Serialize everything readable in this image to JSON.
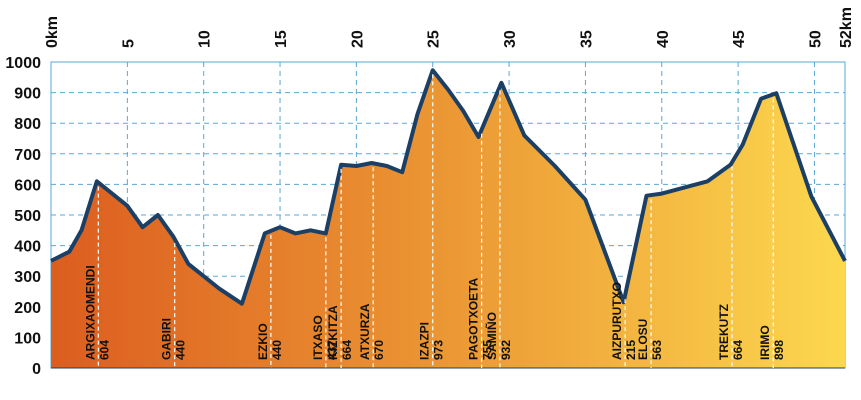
{
  "chart_data": {
    "type": "area",
    "title": "",
    "xlabel": "",
    "ylabel": "",
    "xlim": [
      0,
      52
    ],
    "ylim": [
      0,
      1000
    ],
    "grid": true,
    "x_ticks": [
      "0km",
      "5",
      "10",
      "15",
      "20",
      "25",
      "30",
      "35",
      "40",
      "45",
      "50",
      "52km"
    ],
    "x_tick_values": [
      0,
      5,
      10,
      15,
      20,
      25,
      30,
      35,
      40,
      45,
      50,
      52
    ],
    "y_ticks": [
      "0",
      "100",
      "200",
      "300",
      "400",
      "500",
      "600",
      "700",
      "800",
      "900",
      "1000"
    ],
    "y_tick_values": [
      0,
      100,
      200,
      300,
      400,
      500,
      600,
      700,
      800,
      900,
      1000
    ],
    "profile": {
      "x": [
        0,
        1.2,
        2,
        3,
        4,
        5,
        6,
        7,
        8,
        9,
        10,
        11,
        12.5,
        14,
        15,
        16,
        17,
        18,
        19,
        20,
        21,
        22,
        23,
        24,
        25,
        26,
        27,
        28,
        29.5,
        31,
        33,
        35,
        37.5,
        39,
        40,
        43,
        44.5,
        45.3,
        46.5,
        47.5,
        49.8,
        52
      ],
      "y": [
        350,
        380,
        450,
        610,
        570,
        530,
        460,
        500,
        430,
        340,
        300,
        260,
        210,
        440,
        460,
        440,
        450,
        440,
        664,
        660,
        670,
        660,
        640,
        830,
        973,
        910,
        840,
        755,
        932,
        760,
        660,
        550,
        215,
        563,
        570,
        610,
        664,
        730,
        880,
        898,
        560,
        350
      ]
    },
    "points_of_interest": [
      {
        "name": "ARGIXAOMENDI",
        "elevation_label": "604",
        "km": 3.1
      },
      {
        "name": "GABIRI",
        "elevation_label": "440",
        "km": 8.1
      },
      {
        "name": "EZKIO",
        "elevation_label": "440",
        "km": 14.4
      },
      {
        "name": "ITXASO",
        "elevation_label": "437",
        "km": 18.0
      },
      {
        "name": "KIZKITZA",
        "elevation_label": "664",
        "km": 19.0
      },
      {
        "name": "ATXURZA",
        "elevation_label": "670",
        "km": 21.1
      },
      {
        "name": "IZAZPI",
        "elevation_label": "973",
        "km": 25.0
      },
      {
        "name": "PAGOTXOETA",
        "elevation_label": "755",
        "km": 28.2
      },
      {
        "name": "SAMIÑO",
        "elevation_label": "932",
        "km": 29.4
      },
      {
        "name": "AIZPURUTXO",
        "elevation_label": "215",
        "km": 37.6
      },
      {
        "name": "ELOSU",
        "elevation_label": "563",
        "km": 39.3
      },
      {
        "name": "TREKUTZ",
        "elevation_label": "664",
        "km": 44.6
      },
      {
        "name": "IRIMO",
        "elevation_label": "898",
        "km": 47.3
      }
    ],
    "colors": {
      "fill_start": "#dc5d1f",
      "fill_mid": "#ec9a35",
      "fill_end": "#fcd84e",
      "outline": "#1c3f66",
      "grid": "#5aa7d6"
    }
  }
}
